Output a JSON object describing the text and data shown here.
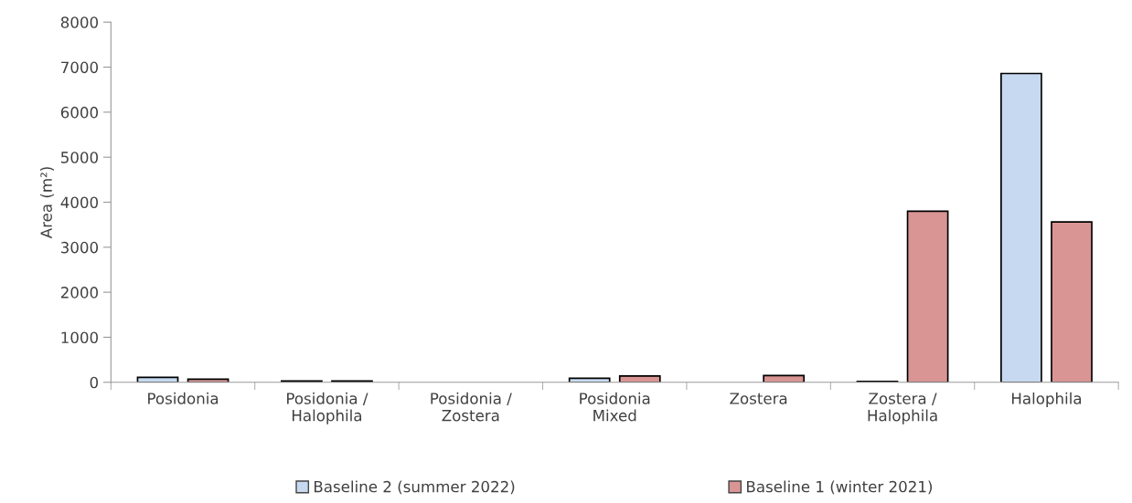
{
  "chart_data": {
    "type": "bar",
    "ylabel": "Area (m²)",
    "categories": [
      "Posidonia",
      "Posidonia /\nHalophila",
      "Posidonia /\nZostera",
      "Posidonia\nMixed",
      "Zostera",
      "Zostera /\nHalophila",
      "Halophila"
    ],
    "series": [
      {
        "name": "Baseline 2 (summer 2022)",
        "color": "#c6d9f0",
        "values": [
          110,
          30,
          null,
          90,
          null,
          20,
          6860
        ]
      },
      {
        "name": "Baseline 1 (winter 2021)",
        "color": "#d99594",
        "values": [
          70,
          30,
          null,
          140,
          150,
          3800,
          3560
        ]
      }
    ],
    "ylim": [
      0,
      8000
    ],
    "yticks": [
      0,
      1000,
      2000,
      3000,
      4000,
      5000,
      6000,
      7000,
      8000
    ],
    "grid": false,
    "legend": "bottom"
  }
}
